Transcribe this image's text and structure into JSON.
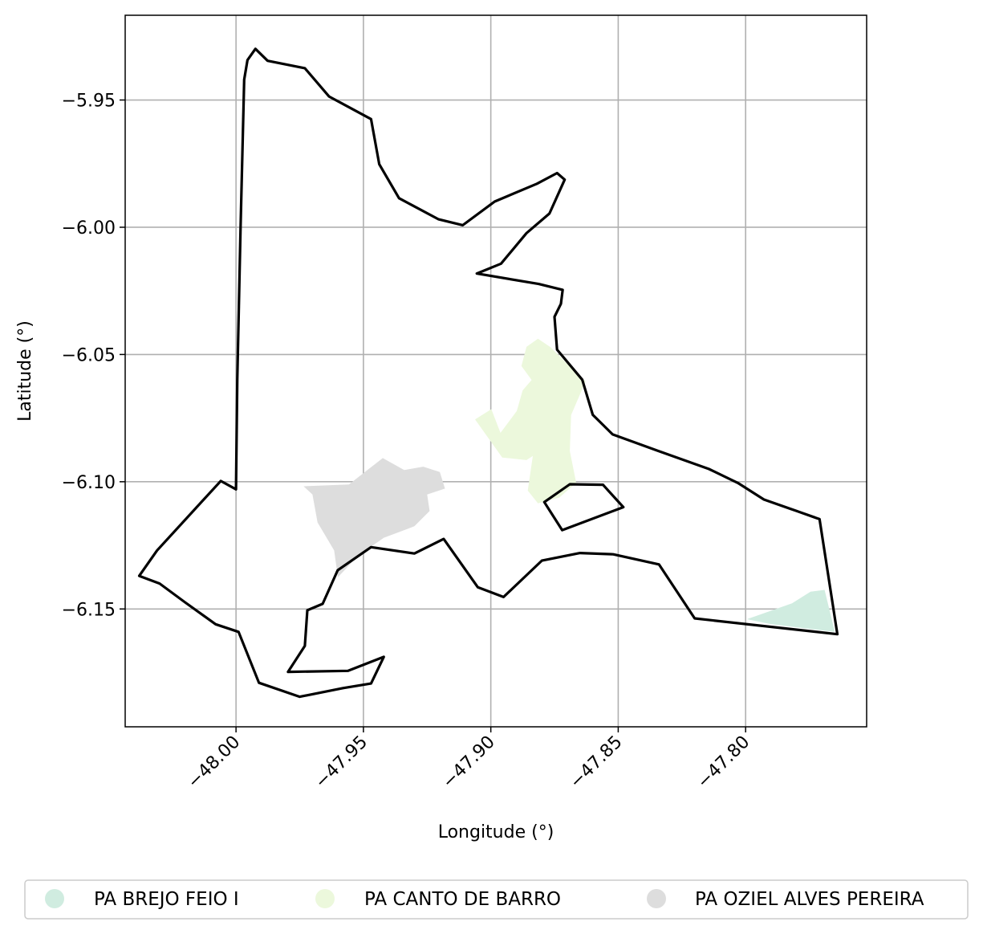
{
  "chart_data": {
    "type": "map",
    "xlabel": "Longitude (°)",
    "ylabel": "Latitude (°)",
    "xlim": [
      -48.0435,
      -47.7525
    ],
    "ylim": [
      -6.1963,
      -5.9167
    ],
    "x_ticks": [
      {
        "value": -48.0,
        "label": "−48.00"
      },
      {
        "value": -47.95,
        "label": "−47.95"
      },
      {
        "value": -47.9,
        "label": "−47.90"
      },
      {
        "value": -47.85,
        "label": "−47.85"
      },
      {
        "value": -47.8,
        "label": "−47.80"
      }
    ],
    "y_ticks": [
      {
        "value": -5.95,
        "label": "−5.95"
      },
      {
        "value": -6.0,
        "label": "−6.00"
      },
      {
        "value": -6.05,
        "label": "−6.05"
      },
      {
        "value": -6.1,
        "label": "−6.10"
      },
      {
        "value": -6.15,
        "label": "−6.15"
      }
    ],
    "grid": true,
    "legend_position": "bottom",
    "boundary": {
      "stroke": "#000000",
      "outer": [
        [
          -47.9955,
          -5.9343
        ],
        [
          -47.9924,
          -5.9299
        ],
        [
          -47.9876,
          -5.9346
        ],
        [
          -47.973,
          -5.9375
        ],
        [
          -47.9635,
          -5.9486
        ],
        [
          -47.947,
          -5.9575
        ],
        [
          -47.9438,
          -5.9752
        ],
        [
          -47.936,
          -5.9886
        ],
        [
          -47.9205,
          -5.9969
        ],
        [
          -47.911,
          -5.9992
        ],
        [
          -47.8985,
          -5.9899
        ],
        [
          -47.8819,
          -5.9829
        ],
        [
          -47.874,
          -5.9787
        ],
        [
          -47.871,
          -5.9813
        ],
        [
          -47.877,
          -5.9946
        ],
        [
          -47.886,
          -6.0023
        ],
        [
          -47.896,
          -6.0143
        ],
        [
          -47.9055,
          -6.0182
        ],
        [
          -47.8812,
          -6.0223
        ],
        [
          -47.8718,
          -6.0246
        ],
        [
          -47.8725,
          -6.0301
        ],
        [
          -47.875,
          -6.0352
        ],
        [
          -47.874,
          -6.0481
        ],
        [
          -47.8641,
          -6.0599
        ],
        [
          -47.86,
          -6.0737
        ],
        [
          -47.8522,
          -6.0814
        ],
        [
          -47.8345,
          -6.0878
        ],
        [
          -47.8144,
          -6.095
        ],
        [
          -47.803,
          -6.1005
        ],
        [
          -47.7928,
          -6.107
        ],
        [
          -47.78,
          -6.1115
        ],
        [
          -47.771,
          -6.1147
        ],
        [
          -47.764,
          -6.1599
        ],
        [
          -47.82,
          -6.1537
        ],
        [
          -47.834,
          -6.1325
        ],
        [
          -47.852,
          -6.1285
        ],
        [
          -47.865,
          -6.128
        ],
        [
          -47.88,
          -6.131
        ],
        [
          -47.895,
          -6.1453
        ],
        [
          -47.9051,
          -6.1415
        ],
        [
          -47.9185,
          -6.1225
        ],
        [
          -47.93,
          -6.1282
        ],
        [
          -47.947,
          -6.1257
        ],
        [
          -47.9601,
          -6.1348
        ],
        [
          -47.966,
          -6.148
        ],
        [
          -47.972,
          -6.1505
        ],
        [
          -47.973,
          -6.1645
        ],
        [
          -47.9796,
          -6.1747
        ],
        [
          -47.956,
          -6.1743
        ],
        [
          -47.942,
          -6.1688
        ],
        [
          -47.947,
          -6.1793
        ],
        [
          -47.958,
          -6.1811
        ],
        [
          -47.975,
          -6.1845
        ],
        [
          -47.991,
          -6.179
        ],
        [
          -47.999,
          -6.159
        ],
        [
          -48.008,
          -6.156
        ],
        [
          -48.02,
          -6.1474
        ],
        [
          -48.03,
          -6.14
        ],
        [
          -48.038,
          -6.137
        ],
        [
          -48.031,
          -6.127
        ],
        [
          -48.006,
          -6.0997
        ],
        [
          -48.0,
          -6.103
        ],
        [
          -47.9995,
          -6.06
        ],
        [
          -47.9982,
          -6.0
        ],
        [
          -47.9968,
          -5.942
        ],
        [
          -47.9955,
          -5.9343
        ]
      ],
      "inner": [
        [
          -47.879,
          -6.108
        ],
        [
          -47.869,
          -6.101
        ],
        [
          -47.856,
          -6.1012
        ],
        [
          -47.848,
          -6.11
        ],
        [
          -47.872,
          -6.119
        ],
        [
          -47.879,
          -6.108
        ]
      ]
    },
    "series": [
      {
        "name": "PA BREJO FEIO I",
        "color": "#d0ece0",
        "polygon": [
          [
            -47.7995,
            -6.154
          ],
          [
            -47.7818,
            -6.1478
          ],
          [
            -47.7745,
            -6.1432
          ],
          [
            -47.769,
            -6.1425
          ],
          [
            -47.765,
            -6.159
          ],
          [
            -47.79,
            -6.156
          ],
          [
            -47.7995,
            -6.154
          ]
        ]
      },
      {
        "name": "PA CANTO DE BARRO",
        "color": "#ecf8dc",
        "polygon": [
          [
            -47.8815,
            -6.0438
          ],
          [
            -47.8765,
            -6.0472
          ],
          [
            -47.87,
            -6.0537
          ],
          [
            -47.8628,
            -6.0605
          ],
          [
            -47.8685,
            -6.0738
          ],
          [
            -47.869,
            -6.0879
          ],
          [
            -47.8665,
            -6.1004
          ],
          [
            -47.8731,
            -6.1062
          ],
          [
            -47.8815,
            -6.1085
          ],
          [
            -47.8855,
            -6.1035
          ],
          [
            -47.8835,
            -6.0899
          ],
          [
            -47.886,
            -6.0915
          ],
          [
            -47.8955,
            -6.0905
          ],
          [
            -47.9062,
            -6.0755
          ],
          [
            -47.8998,
            -6.0715
          ],
          [
            -47.8962,
            -6.0808
          ],
          [
            -47.8898,
            -6.0722
          ],
          [
            -47.8875,
            -6.0641
          ],
          [
            -47.884,
            -6.06
          ],
          [
            -47.888,
            -6.0545
          ],
          [
            -47.886,
            -6.047
          ],
          [
            -47.8815,
            -6.0438
          ]
        ]
      },
      {
        "name": "PA OZIEL ALVES PEREIRA",
        "color": "#dddddd",
        "polygon": [
          [
            -47.9735,
            -6.1018
          ],
          [
            -47.9557,
            -6.1011
          ],
          [
            -47.9424,
            -6.0907
          ],
          [
            -47.934,
            -6.0954
          ],
          [
            -47.9265,
            -6.0941
          ],
          [
            -47.92,
            -6.0962
          ],
          [
            -47.918,
            -6.1027
          ],
          [
            -47.925,
            -6.105
          ],
          [
            -47.924,
            -6.1115
          ],
          [
            -47.93,
            -6.1175
          ],
          [
            -47.942,
            -6.122
          ],
          [
            -47.952,
            -6.129
          ],
          [
            -47.96,
            -6.1375
          ],
          [
            -47.9615,
            -6.127
          ],
          [
            -47.968,
            -6.116
          ],
          [
            -47.97,
            -6.105
          ],
          [
            -47.9735,
            -6.1018
          ]
        ]
      }
    ]
  }
}
